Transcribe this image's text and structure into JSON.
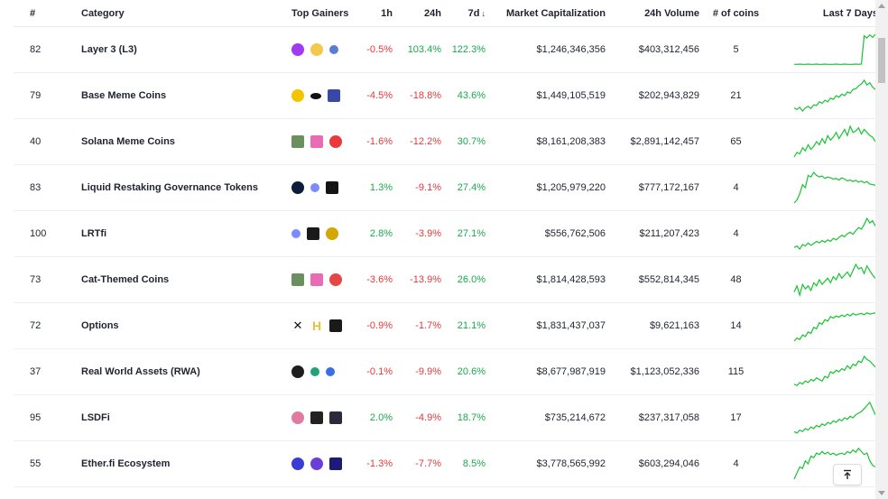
{
  "header": {
    "rank": "#",
    "category": "Category",
    "top_gainers": "Top Gainers",
    "h1": "1h",
    "h24": "24h",
    "d7": "7d",
    "market_cap": "Market Capitalization",
    "volume": "24h Volume",
    "coins": "# of coins",
    "last7": "Last 7 Days"
  },
  "colors": {
    "positive": "#1ba84c",
    "negative": "#e5383b",
    "spark": "#16c432"
  },
  "rows": [
    {
      "rank": "82",
      "name": "Layer 3 (L3)",
      "h1": "-0.5%",
      "h24": "103.4%",
      "d7": "122.3%",
      "market_cap": "$1,246,346,356",
      "volume": "$403,312,456",
      "coins": "5",
      "icons": [
        {
          "name": "purple-token-icon",
          "color": "#a23bf0",
          "shape": "circle"
        },
        {
          "name": "degen-token-icon",
          "color": "#f2c94c",
          "shape": "circle"
        },
        {
          "name": "blue-token-icon",
          "color": "#5b7bd5",
          "shape": "small"
        }
      ],
      "trend": [
        0.02,
        0.02,
        0.03,
        0.02,
        0.02,
        0.03,
        0.02,
        0.02,
        0.03,
        0.02,
        0.02,
        0.03,
        0.02,
        0.02,
        0.02,
        0.03,
        0.02,
        0.02,
        0.03,
        0.02,
        0.02,
        0.02,
        0.03,
        0.02,
        0.03,
        0.95,
        0.88,
        0.98,
        0.9,
        1.0
      ]
    },
    {
      "rank": "79",
      "name": "Base Meme Coins",
      "h1": "-4.5%",
      "h24": "-18.8%",
      "d7": "43.6%",
      "market_cap": "$1,449,105,519",
      "volume": "$202,943,829",
      "coins": "21",
      "icons": [
        {
          "name": "yellow-smiley-token-icon",
          "color": "#f5c400",
          "shape": "circle"
        },
        {
          "name": "black-token-icon",
          "color": "#111111",
          "shape": "oval"
        },
        {
          "name": "robot-token-icon",
          "color": "#3848a8",
          "shape": "square"
        }
      ],
      "trend": [
        0.1,
        0.05,
        0.12,
        0.0,
        0.1,
        0.15,
        0.08,
        0.2,
        0.18,
        0.3,
        0.25,
        0.35,
        0.3,
        0.42,
        0.38,
        0.5,
        0.45,
        0.55,
        0.5,
        0.62,
        0.58,
        0.7,
        0.72,
        0.82,
        0.88,
        1.0,
        0.85,
        0.92,
        0.78,
        0.7
      ]
    },
    {
      "rank": "40",
      "name": "Solana Meme Coins",
      "h1": "-1.6%",
      "h24": "-12.2%",
      "d7": "30.7%",
      "market_cap": "$8,161,208,383",
      "volume": "$2,891,142,457",
      "coins": "65",
      "icons": [
        {
          "name": "pixel-token-icon",
          "color": "#6b8f5e",
          "shape": "square"
        },
        {
          "name": "unicorn-token-icon",
          "color": "#e86bb3",
          "shape": "square"
        },
        {
          "name": "red-token-icon",
          "color": "#e83a3a",
          "shape": "circle"
        }
      ],
      "trend": [
        0.0,
        0.15,
        0.1,
        0.3,
        0.2,
        0.4,
        0.25,
        0.35,
        0.5,
        0.4,
        0.6,
        0.45,
        0.7,
        0.55,
        0.65,
        0.8,
        0.6,
        0.75,
        0.9,
        0.7,
        1.0,
        0.8,
        0.85,
        0.95,
        0.75,
        0.9,
        0.8,
        0.7,
        0.65,
        0.5
      ]
    },
    {
      "rank": "83",
      "name": "Liquid Restaking Governance Tokens",
      "h1": "1.3%",
      "h24": "-9.1%",
      "d7": "27.4%",
      "market_cap": "$1,205,979,220",
      "volume": "$777,172,167",
      "coins": "4",
      "icons": [
        {
          "name": "dark-blue-token-icon",
          "color": "#0b1d3a",
          "shape": "circle"
        },
        {
          "name": "drop-token-icon",
          "color": "#7a8cff",
          "shape": "small"
        },
        {
          "name": "black-square-token-icon",
          "color": "#141414",
          "shape": "square"
        }
      ],
      "trend": [
        0.0,
        0.1,
        0.3,
        0.6,
        0.5,
        0.9,
        0.85,
        1.0,
        0.9,
        0.85,
        0.88,
        0.8,
        0.85,
        0.82,
        0.78,
        0.8,
        0.75,
        0.82,
        0.78,
        0.72,
        0.75,
        0.7,
        0.74,
        0.68,
        0.72,
        0.66,
        0.7,
        0.62,
        0.6,
        0.58
      ]
    },
    {
      "rank": "100",
      "name": "LRTfi",
      "h1": "2.8%",
      "h24": "-3.9%",
      "d7": "27.1%",
      "market_cap": "$556,762,506",
      "volume": "$211,207,423",
      "coins": "4",
      "icons": [
        {
          "name": "drop-token-icon",
          "color": "#7a8cff",
          "shape": "small"
        },
        {
          "name": "grid-token-icon",
          "color": "#1a1a1a",
          "shape": "square"
        },
        {
          "name": "coin-token-icon",
          "color": "#d4a600",
          "shape": "circle"
        }
      ],
      "trend": [
        0.05,
        0.1,
        0.0,
        0.15,
        0.1,
        0.2,
        0.12,
        0.18,
        0.25,
        0.2,
        0.28,
        0.22,
        0.3,
        0.25,
        0.35,
        0.3,
        0.38,
        0.45,
        0.4,
        0.5,
        0.55,
        0.48,
        0.6,
        0.7,
        0.65,
        0.8,
        1.0,
        0.85,
        0.92,
        0.75
      ]
    },
    {
      "rank": "73",
      "name": "Cat-Themed Coins",
      "h1": "-3.6%",
      "h24": "-13.9%",
      "d7": "26.0%",
      "market_cap": "$1,814,428,593",
      "volume": "$552,814,345",
      "coins": "48",
      "icons": [
        {
          "name": "pixel-token-icon",
          "color": "#6b8f5e",
          "shape": "square"
        },
        {
          "name": "unicorn-token-icon",
          "color": "#e86bb3",
          "shape": "square"
        },
        {
          "name": "cat-token-icon",
          "color": "#e84545",
          "shape": "circle"
        }
      ],
      "trend": [
        0.1,
        0.3,
        0.0,
        0.35,
        0.2,
        0.3,
        0.15,
        0.4,
        0.3,
        0.5,
        0.35,
        0.45,
        0.55,
        0.4,
        0.6,
        0.5,
        0.7,
        0.55,
        0.65,
        0.75,
        0.6,
        0.8,
        1.0,
        0.85,
        0.9,
        0.7,
        0.95,
        0.8,
        0.65,
        0.55
      ]
    },
    {
      "rank": "72",
      "name": "Options",
      "h1": "-0.9%",
      "h24": "-1.7%",
      "d7": "21.1%",
      "market_cap": "$1,831,437,037",
      "volume": "$9,621,163",
      "coins": "14",
      "icons": [
        {
          "name": "x-token-icon",
          "color": "#111111",
          "shape": "x"
        },
        {
          "name": "h-token-icon",
          "color": "#e8c23a",
          "shape": "h"
        },
        {
          "name": "orange-bars-token-icon",
          "color": "#1a1a1a",
          "shape": "square"
        }
      ],
      "trend": [
        0.0,
        0.1,
        0.05,
        0.2,
        0.15,
        0.3,
        0.25,
        0.45,
        0.4,
        0.6,
        0.55,
        0.7,
        0.65,
        0.8,
        0.75,
        0.82,
        0.78,
        0.85,
        0.8,
        0.88,
        0.82,
        0.9,
        0.85,
        0.88,
        0.9,
        0.86,
        0.92,
        0.88,
        0.9,
        0.92
      ]
    },
    {
      "rank": "37",
      "name": "Real World Assets (RWA)",
      "h1": "-0.1%",
      "h24": "-9.9%",
      "d7": "20.6%",
      "market_cap": "$8,677,987,919",
      "volume": "$1,123,052,336",
      "coins": "115",
      "icons": [
        {
          "name": "dark-x-token-icon",
          "color": "#1e1e1e",
          "shape": "circle"
        },
        {
          "name": "green-token-icon",
          "color": "#1fa37a",
          "shape": "small"
        },
        {
          "name": "blue-arrow-token-icon",
          "color": "#3a6ee8",
          "shape": "small"
        }
      ],
      "trend": [
        0.1,
        0.05,
        0.15,
        0.1,
        0.2,
        0.15,
        0.25,
        0.2,
        0.3,
        0.25,
        0.2,
        0.35,
        0.3,
        0.5,
        0.45,
        0.55,
        0.5,
        0.6,
        0.55,
        0.7,
        0.6,
        0.75,
        0.7,
        0.85,
        0.8,
        1.0,
        0.9,
        0.85,
        0.75,
        0.65
      ]
    },
    {
      "rank": "95",
      "name": "LSDFi",
      "h1": "2.0%",
      "h24": "-4.9%",
      "d7": "18.7%",
      "market_cap": "$735,214,672",
      "volume": "$237,317,058",
      "coins": "17",
      "icons": [
        {
          "name": "pink-token-icon",
          "color": "#e07aa0",
          "shape": "circle"
        },
        {
          "name": "crown-token-icon",
          "color": "#222222",
          "shape": "square"
        },
        {
          "name": "dark-square-token-icon",
          "color": "#2a2a3a",
          "shape": "square"
        }
      ],
      "trend": [
        0.05,
        0.0,
        0.1,
        0.05,
        0.15,
        0.1,
        0.2,
        0.15,
        0.25,
        0.2,
        0.3,
        0.25,
        0.35,
        0.3,
        0.4,
        0.35,
        0.45,
        0.4,
        0.5,
        0.45,
        0.55,
        0.5,
        0.6,
        0.65,
        0.7,
        0.8,
        0.9,
        1.0,
        0.8,
        0.6
      ]
    },
    {
      "rank": "55",
      "name": "Ether.fi Ecosystem",
      "h1": "-1.3%",
      "h24": "-7.7%",
      "d7": "8.5%",
      "market_cap": "$3,778,565,992",
      "volume": "$603,294,046",
      "coins": "4",
      "icons": [
        {
          "name": "blue-circle-token-icon",
          "color": "#3b3bd6",
          "shape": "circle"
        },
        {
          "name": "purple-circle-token-icon",
          "color": "#6a3fd8",
          "shape": "circle"
        },
        {
          "name": "navy-square-token-icon",
          "color": "#1e1a78",
          "shape": "square"
        }
      ],
      "trend": [
        0.0,
        0.2,
        0.4,
        0.35,
        0.6,
        0.5,
        0.75,
        0.7,
        0.85,
        0.8,
        0.9,
        0.82,
        0.88,
        0.8,
        0.85,
        0.78,
        0.82,
        0.85,
        0.8,
        0.9,
        0.85,
        0.95,
        0.88,
        1.0,
        0.9,
        0.8,
        0.85,
        0.6,
        0.45,
        0.4
      ]
    }
  ]
}
